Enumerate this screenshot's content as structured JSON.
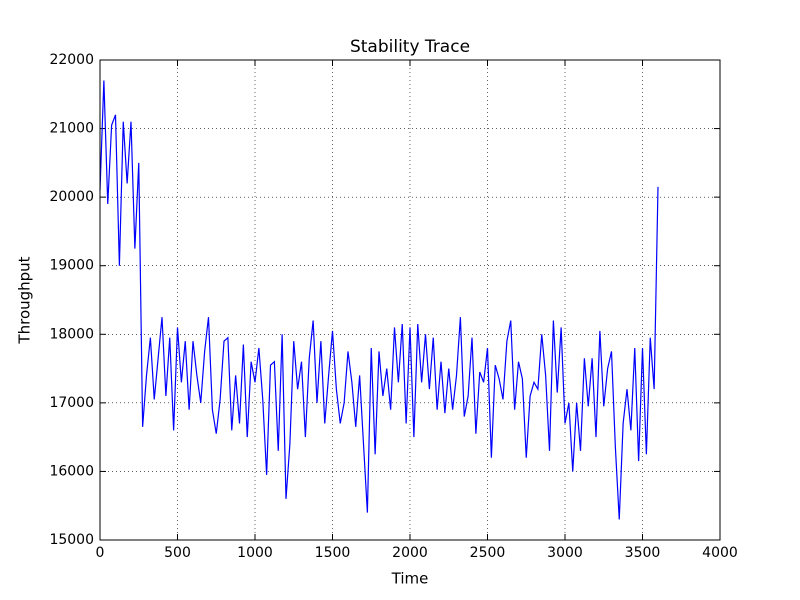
{
  "chart_data": {
    "type": "line",
    "title": "Stability Trace",
    "x_label": "Time",
    "y_label": "Throughput",
    "x": [
      0,
      25,
      50,
      75,
      100,
      125,
      150,
      175,
      200,
      225,
      250,
      275,
      300,
      325,
      350,
      375,
      400,
      425,
      450,
      475,
      500,
      525,
      550,
      575,
      600,
      625,
      650,
      675,
      700,
      725,
      750,
      775,
      800,
      825,
      850,
      875,
      900,
      925,
      950,
      975,
      1000,
      1025,
      1050,
      1075,
      1100,
      1125,
      1150,
      1175,
      1200,
      1225,
      1250,
      1275,
      1300,
      1325,
      1350,
      1375,
      1400,
      1425,
      1450,
      1475,
      1500,
      1525,
      1550,
      1575,
      1600,
      1625,
      1650,
      1675,
      1700,
      1725,
      1750,
      1775,
      1800,
      1825,
      1850,
      1875,
      1900,
      1925,
      1950,
      1975,
      2000,
      2025,
      2050,
      2075,
      2100,
      2125,
      2150,
      2175,
      2200,
      2225,
      2250,
      2275,
      2300,
      2325,
      2350,
      2375,
      2400,
      2425,
      2450,
      2475,
      2500,
      2525,
      2550,
      2575,
      2600,
      2625,
      2650,
      2675,
      2700,
      2725,
      2750,
      2775,
      2800,
      2825,
      2850,
      2875,
      2900,
      2925,
      2950,
      2975,
      3000,
      3025,
      3050,
      3075,
      3100,
      3125,
      3150,
      3175,
      3200,
      3225,
      3250,
      3275,
      3300,
      3325,
      3350,
      3375,
      3400,
      3425,
      3450,
      3475,
      3500,
      3525,
      3550,
      3575,
      3600
    ],
    "series": [
      {
        "color": "#0000ff",
        "values": [
          20100,
          21700,
          19900,
          21050,
          21200,
          19000,
          21100,
          20200,
          21100,
          19250,
          20500,
          16650,
          17400,
          17950,
          17050,
          17650,
          18250,
          17100,
          17950,
          16600,
          18100,
          17300,
          17900,
          16900,
          17900,
          17400,
          17000,
          17750,
          18250,
          16900,
          16550,
          17050,
          17900,
          17950,
          16600,
          17400,
          16700,
          17850,
          16500,
          17600,
          17300,
          17800,
          17050,
          15950,
          17550,
          17600,
          16300,
          18000,
          15600,
          16400,
          17900,
          17200,
          17600,
          16500,
          17650,
          18200,
          17000,
          17900,
          16700,
          17400,
          18050,
          17200,
          16700,
          17000,
          17750,
          17300,
          16650,
          17400,
          16400,
          15400,
          17800,
          16250,
          17750,
          17100,
          17500,
          16900,
          18100,
          17300,
          18150,
          16700,
          18100,
          16500,
          18150,
          17300,
          18000,
          17200,
          17950,
          16900,
          17600,
          16850,
          17500,
          16900,
          17400,
          18250,
          16800,
          17100,
          17950,
          16550,
          17450,
          17300,
          17800,
          16200,
          17550,
          17350,
          17050,
          17900,
          18200,
          16900,
          17600,
          17350,
          16200,
          17100,
          17300,
          17200,
          18000,
          17400,
          16300,
          18200,
          17150,
          18100,
          16700,
          17000,
          16000,
          17000,
          16300,
          17650,
          16950,
          17650,
          16500,
          18050,
          16950,
          17500,
          17750,
          16350,
          15300,
          16700,
          17200,
          16600,
          17800,
          16150,
          17800,
          16250,
          17950,
          17200,
          20150
        ]
      }
    ],
    "xlim": [
      0,
      4000
    ],
    "xticks": [
      0,
      500,
      1000,
      1500,
      2000,
      2500,
      3000,
      3500,
      4000
    ],
    "ylim": [
      15000,
      22000
    ],
    "yticks": [
      15000,
      16000,
      17000,
      18000,
      19000,
      20000,
      21000,
      22000
    ],
    "grid": true
  }
}
